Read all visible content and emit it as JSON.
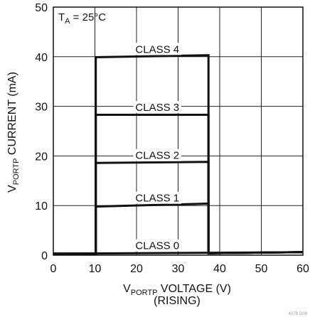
{
  "chart_data": {
    "type": "line",
    "xlabel": {
      "main": "V",
      "sub": "PORTP",
      "rest": " VOLTAGE (V)",
      "line2": "(RISING)"
    },
    "ylabel": {
      "main": "V",
      "sub": "PORTP",
      "rest": " CURRENT (mA)"
    },
    "xlim": [
      0,
      60
    ],
    "ylim": [
      0,
      50
    ],
    "x_ticks": [
      0,
      10,
      20,
      30,
      40,
      50,
      60
    ],
    "y_ticks": [
      0,
      10,
      20,
      30,
      40,
      50
    ],
    "grid": true,
    "condition": {
      "main": "T",
      "sub": "A",
      "rest": " = 25°C"
    },
    "series": [
      {
        "name": "CLASS 0",
        "x": [
          0,
          60
        ],
        "y": [
          0.3,
          0.6
        ]
      },
      {
        "name": "CLASS 1",
        "x": [
          0,
          10.2,
          10.2,
          37.3,
          37.3,
          60
        ],
        "y": [
          0.3,
          0.3,
          9.8,
          10.4,
          0.4,
          0.6
        ]
      },
      {
        "name": "CLASS 2",
        "x": [
          0,
          10.2,
          10.2,
          37.3,
          37.3,
          60
        ],
        "y": [
          0.3,
          0.3,
          18.6,
          18.8,
          0.4,
          0.6
        ]
      },
      {
        "name": "CLASS 3",
        "x": [
          0,
          10.2,
          10.2,
          37.3,
          37.3,
          60
        ],
        "y": [
          0.3,
          0.3,
          28.3,
          28.3,
          0.4,
          0.6
        ]
      },
      {
        "name": "CLASS 4",
        "x": [
          0,
          10.2,
          10.2,
          37.3,
          37.3,
          60
        ],
        "y": [
          0.3,
          0.3,
          39.9,
          40.3,
          0.4,
          0.6
        ]
      }
    ],
    "annotations": [
      {
        "text": "CLASS 4",
        "x": 25,
        "y": 41.5
      },
      {
        "text": "CLASS 3",
        "x": 25,
        "y": 29.8
      },
      {
        "text": "CLASS 2",
        "x": 25,
        "y": 20.1
      },
      {
        "text": "CLASS 1",
        "x": 25,
        "y": 11.5
      },
      {
        "text": "CLASS 0",
        "x": 25,
        "y": 1.9
      }
    ],
    "figure_number": "4279 G09"
  }
}
